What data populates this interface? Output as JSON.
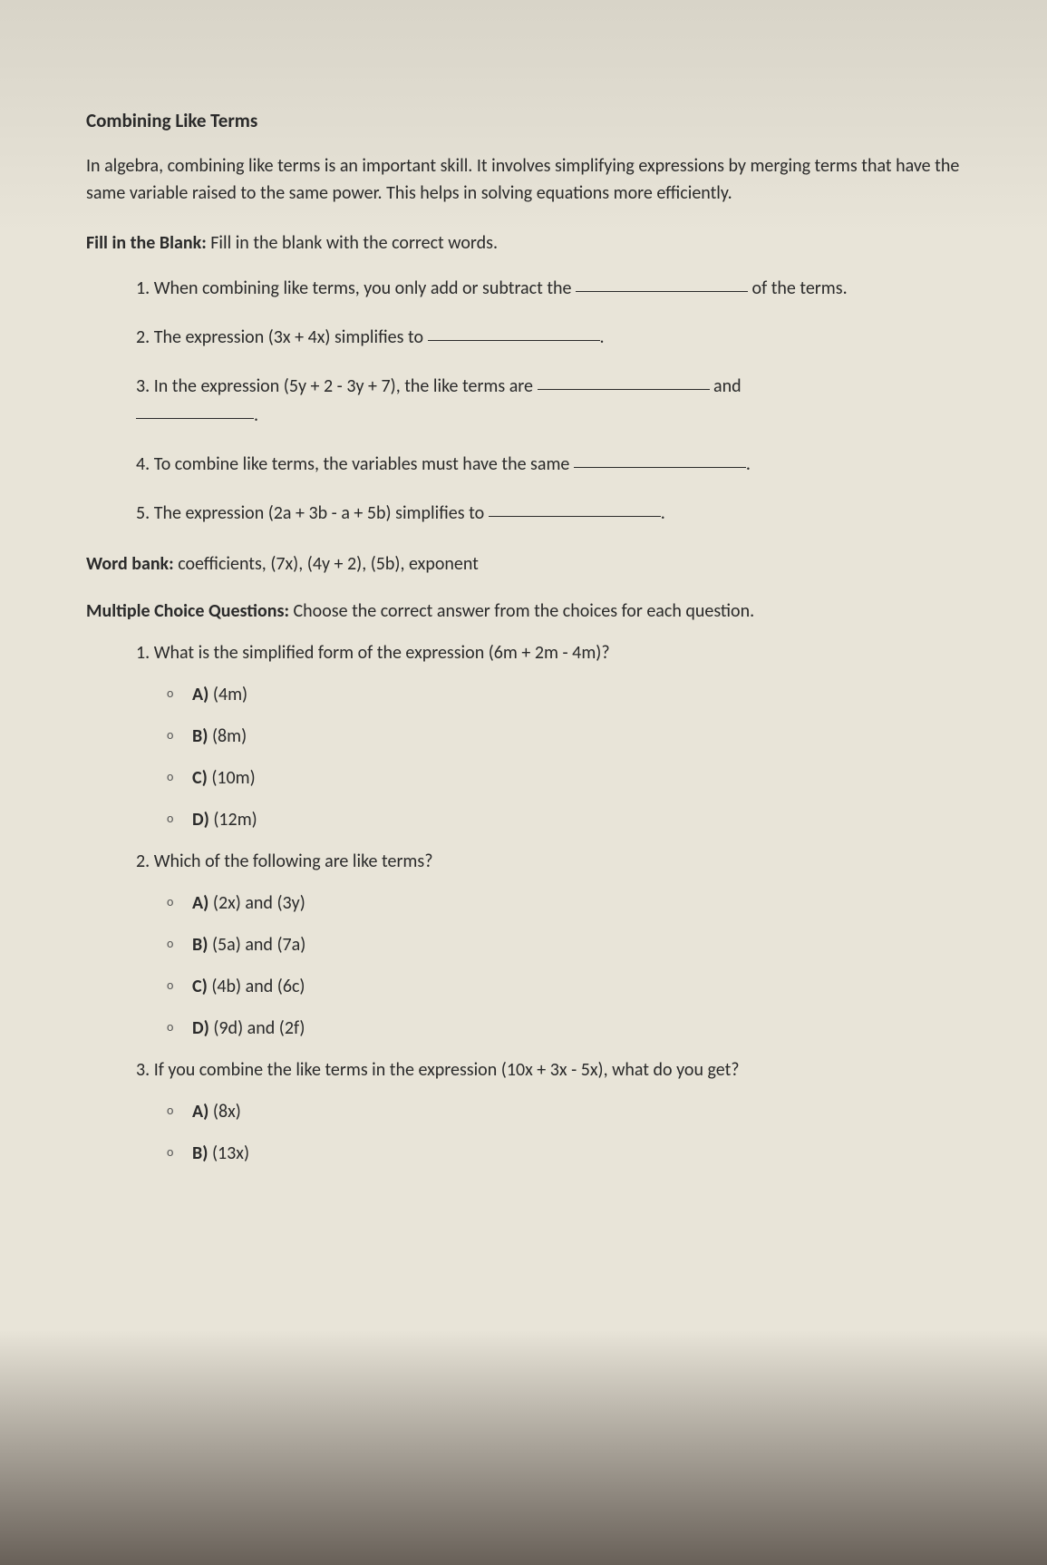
{
  "title": "Combining Like Terms",
  "intro": "In algebra, combining like terms is an important skill. It involves simplifying expressions by merging terms that have the same variable raised to the same power. This helps in solving equations more efficiently.",
  "fillBlank": {
    "headerBold": "Fill in the Blank:",
    "headerRest": " Fill in the blank with the correct words.",
    "items": [
      {
        "num": "1.",
        "parts": [
          "When combining like terms, you only add or subtract the ",
          "BLANK",
          " of the terms."
        ]
      },
      {
        "num": "2.",
        "parts": [
          "The expression (3x + 4x) simplifies to ",
          "BLANK",
          "."
        ]
      },
      {
        "num": "3.",
        "parts": [
          "In the expression (5y + 2 - 3y + 7), the like terms are ",
          "BLANK",
          " and ",
          "BLANK2",
          "."
        ]
      },
      {
        "num": "4.",
        "parts": [
          "To combine like terms, the variables must have the same ",
          "BLANK",
          "."
        ]
      },
      {
        "num": "5.",
        "parts": [
          "The expression (2a + 3b - a + 5b) simplifies to ",
          "BLANK",
          "."
        ]
      }
    ]
  },
  "wordBank": {
    "label": "Word bank:",
    "content": " coefficients, (7x), (4y + 2), (5b), exponent"
  },
  "multipleChoice": {
    "headerBold": "Multiple Choice Questions:",
    "headerRest": " Choose the correct answer from the choices for each question.",
    "questions": [
      {
        "num": "1.",
        "text": "What is the simplified form of the expression (6m + 2m - 4m)?",
        "options": [
          {
            "label": "A)",
            "text": "(4m)"
          },
          {
            "label": "B)",
            "text": "(8m)"
          },
          {
            "label": "C)",
            "text": "(10m)"
          },
          {
            "label": "D)",
            "text": "(12m)"
          }
        ]
      },
      {
        "num": "2.",
        "text": "Which of the following are like terms?",
        "options": [
          {
            "label": "A)",
            "text": "(2x) and (3y)"
          },
          {
            "label": "B)",
            "text": "(5a) and (7a)"
          },
          {
            "label": "C)",
            "text": "(4b) and (6c)"
          },
          {
            "label": "D)",
            "text": "(9d) and (2f)"
          }
        ]
      },
      {
        "num": "3.",
        "text": "If you combine the like terms in the expression (10x + 3x - 5x), what do you get?",
        "options": [
          {
            "label": "A)",
            "text": "(8x)"
          },
          {
            "label": "B)",
            "text": "(13x)"
          }
        ]
      }
    ]
  },
  "styling": {
    "bulletChar": "o",
    "backgroundTop": "#d8d4c8",
    "backgroundMid": "#e8e4d8",
    "backgroundBottom": "#686058",
    "textColor": "#2a2a2a",
    "fontFamily": "Calibri, Arial, sans-serif",
    "titleFontSize": 21,
    "bodyFontSize": 20
  }
}
